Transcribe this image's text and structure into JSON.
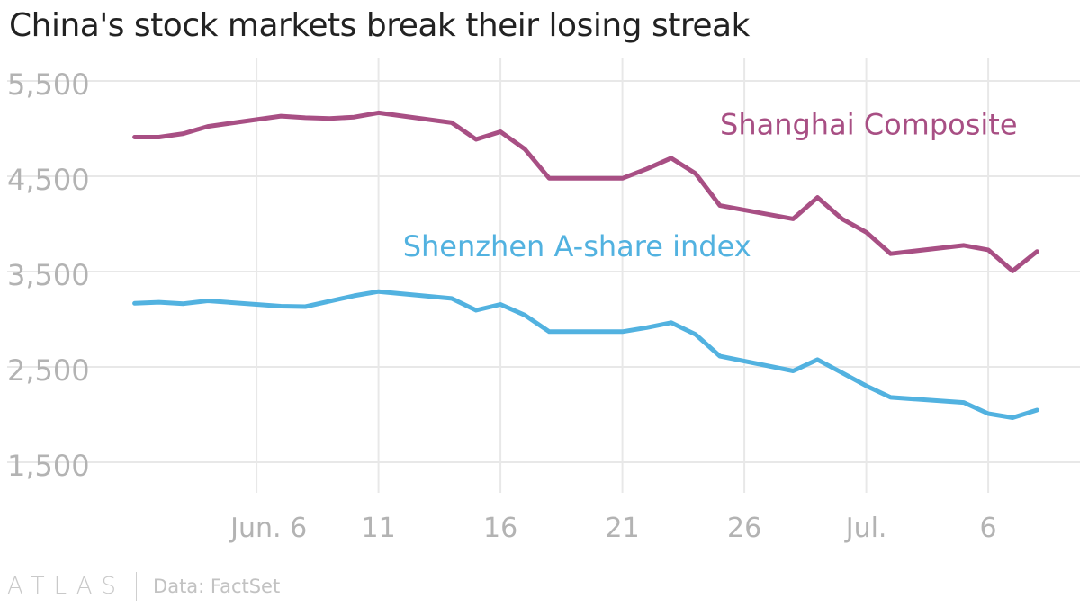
{
  "title": "China's stock markets break their losing streak",
  "footer": {
    "brand": "ATLAS",
    "source": "Data: FactSet"
  },
  "colors": {
    "shanghai": "#a84f84",
    "shenzhen": "#52b2e0",
    "grid": "#e8e8e8",
    "tick": "#b3b3b3"
  },
  "chart_data": {
    "type": "line",
    "title": "China's stock markets break their losing streak",
    "xlabel": "",
    "ylabel": "",
    "ylim": [
      1200,
      5650
    ],
    "yticks": [
      1500,
      2500,
      3500,
      4500,
      5500
    ],
    "ytick_labels": [
      "1,500",
      "2,500",
      "3,500",
      "4,500",
      "5,500"
    ],
    "grid": true,
    "xlim": [
      -3,
      34
    ],
    "x_gridlines": [
      1,
      6,
      11,
      16,
      21,
      26,
      31,
      36
    ],
    "xticks": [
      {
        "day": 1.5,
        "label": "Jun. 6"
      },
      {
        "day": 6,
        "label": "11"
      },
      {
        "day": 11,
        "label": "16"
      },
      {
        "day": 16,
        "label": "21"
      },
      {
        "day": 21,
        "label": "26"
      },
      {
        "day": 26,
        "label": "Jul."
      },
      {
        "day": 31,
        "label": "6"
      }
    ],
    "x_note": "x = trading day, days since Jun. 6 (Jun. 5 = -1 ... Jul. 8 = 32)",
    "series": [
      {
        "name": "Shanghai Composite",
        "label_pos": {
          "day": 20,
          "value": 4940
        },
        "points": [
          [
            -4,
            4910
          ],
          [
            -3,
            4910
          ],
          [
            -2,
            4947
          ],
          [
            -1,
            5023
          ],
          [
            2,
            5131
          ],
          [
            3,
            5114
          ],
          [
            4,
            5106
          ],
          [
            5,
            5121
          ],
          [
            6,
            5166
          ],
          [
            9,
            5062
          ],
          [
            10,
            4887
          ],
          [
            11,
            4967
          ],
          [
            12,
            4785
          ],
          [
            13,
            4478
          ],
          [
            16,
            4478
          ],
          [
            17,
            4577
          ],
          [
            18,
            4691
          ],
          [
            19,
            4528
          ],
          [
            20,
            4192
          ],
          [
            23,
            4053
          ],
          [
            24,
            4277
          ],
          [
            25,
            4054
          ],
          [
            26,
            3912
          ],
          [
            27,
            3687
          ],
          [
            30,
            3775
          ],
          [
            31,
            3727
          ],
          [
            32,
            3507
          ],
          [
            33,
            3710
          ]
        ]
      },
      {
        "name": "Shenzhen A-share index",
        "label_pos": {
          "day": 7,
          "value": 3660
        },
        "points": [
          [
            -4,
            3167
          ],
          [
            -3,
            3178
          ],
          [
            -2,
            3163
          ],
          [
            -1,
            3193
          ],
          [
            2,
            3137
          ],
          [
            3,
            3132
          ],
          [
            4,
            3190
          ],
          [
            5,
            3246
          ],
          [
            6,
            3291
          ],
          [
            9,
            3218
          ],
          [
            10,
            3094
          ],
          [
            11,
            3156
          ],
          [
            12,
            3043
          ],
          [
            13,
            2870
          ],
          [
            16,
            2870
          ],
          [
            17,
            2912
          ],
          [
            18,
            2964
          ],
          [
            19,
            2841
          ],
          [
            20,
            2612
          ],
          [
            23,
            2458
          ],
          [
            24,
            2576
          ],
          [
            25,
            2440
          ],
          [
            26,
            2301
          ],
          [
            27,
            2180
          ],
          [
            30,
            2126
          ],
          [
            31,
            2009
          ],
          [
            32,
            1967
          ],
          [
            33,
            2047
          ]
        ]
      }
    ]
  }
}
